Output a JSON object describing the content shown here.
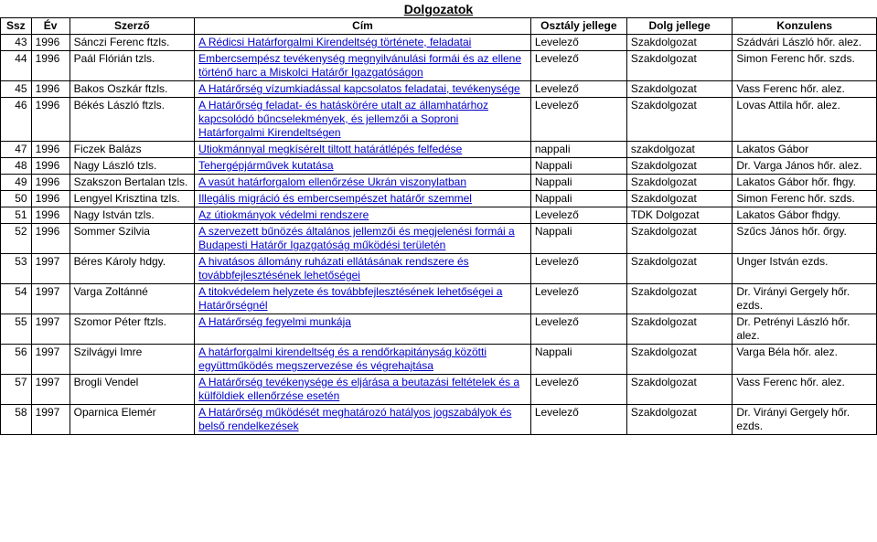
{
  "title": "Dolgozatok",
  "columns": [
    "Ssz",
    "Év",
    "Szerző",
    "Cím",
    "Osztály jellege",
    "Dolg jellege",
    "Konzulens"
  ],
  "rows": [
    {
      "ssz": "43",
      "ev": "1996",
      "szerzo": "Sánczi Ferenc ftzls.",
      "cim": "A Rédicsi Határforgalmi Kirendeltség története, feladatai",
      "osztaly": "Levelező",
      "dolg": "Szakdolgozat",
      "konzulens": "Szádvári László hőr. alez."
    },
    {
      "ssz": "44",
      "ev": "1996",
      "szerzo": "Paál Flórián tzls.",
      "cim": "Embercsempész tevékenység megnyilvánulási formái és az ellene történő harc a Miskolci Határőr Igazgatóságon",
      "osztaly": "Levelező",
      "dolg": "Szakdolgozat",
      "konzulens": "Simon Ferenc hőr. szds."
    },
    {
      "ssz": "45",
      "ev": "1996",
      "szerzo": "Bakos Oszkár ftzls.",
      "cim": "A Határőrség vízumkiadással kapcsolatos feladatai, tevékenysége",
      "osztaly": "Levelező",
      "dolg": "Szakdolgozat",
      "konzulens": "Vass Ferenc hőr. alez."
    },
    {
      "ssz": "46",
      "ev": "1996",
      "szerzo": "Békés László ftzls.",
      "cim": "A Határőrség feladat- és hatáskörére utalt az államhatárhoz kapcsolódó bűncselekmények, és jellemzői a Soproni Határforgalmi Kirendeltségen",
      "osztaly": "Levelező",
      "dolg": "Szakdolgozat",
      "konzulens": "Lovas Attila hőr. alez."
    },
    {
      "ssz": "47",
      "ev": "1996",
      "szerzo": "Ficzek Balázs",
      "cim": "Utiokmánnyal megkísérelt tiltott határátlépés felfedése",
      "osztaly": "nappali",
      "dolg": "szakdolgozat",
      "konzulens": "Lakatos Gábor"
    },
    {
      "ssz": "48",
      "ev": "1996",
      "szerzo": "Nagy László tzls.",
      "cim": "Tehergépjárművek kutatása",
      "osztaly": "Nappali",
      "dolg": "Szakdolgozat",
      "konzulens": "Dr. Varga János hőr. alez."
    },
    {
      "ssz": "49",
      "ev": "1996",
      "szerzo": "Szakszon Bertalan tzls.",
      "cim": "A vasút határforgalom ellenőrzése Ukrán viszonylatban",
      "osztaly": "Nappali",
      "dolg": "Szakdolgozat",
      "konzulens": "Lakatos Gábor hőr. fhgy."
    },
    {
      "ssz": "50",
      "ev": "1996",
      "szerzo": "Lengyel Krisztina tzls.",
      "cim": "Illegális migráció és embercsempészet határőr szemmel",
      "osztaly": "Nappali",
      "dolg": "Szakdolgozat",
      "konzulens": "Simon Ferenc hőr. szds."
    },
    {
      "ssz": "51",
      "ev": "1996",
      "szerzo": "Nagy István tzls.",
      "cim": "Az útiokmányok védelmi rendszere",
      "osztaly": "Levelező",
      "dolg": "TDK Dolgozat",
      "konzulens": "Lakatos Gábor fhdgy."
    },
    {
      "ssz": "52",
      "ev": "1996",
      "szerzo": "Sommer Szilvia",
      "cim": "A szervezett bűnözés általános jellemzői és megjelenési formái a Budapesti Határőr Igazgatóság működési területén",
      "osztaly": "Nappali",
      "dolg": "Szakdolgozat",
      "konzulens": "Szűcs János hőr. őrgy."
    },
    {
      "ssz": "53",
      "ev": "1997",
      "szerzo": "Béres Károly hdgy.",
      "cim": "A hivatásos állomány ruházati ellátásának rendszere és továbbfejlesztésének lehetőségei",
      "osztaly": "Levelező",
      "dolg": "Szakdolgozat",
      "konzulens": "Unger István ezds."
    },
    {
      "ssz": "54",
      "ev": "1997",
      "szerzo": "Varga Zoltánné",
      "cim": "A titokvédelem helyzete és továbbfejlesztésének lehetőségei a Határőrségnél",
      "osztaly": "Levelező",
      "dolg": "Szakdolgozat",
      "konzulens": "Dr. Virányi Gergely hőr. ezds."
    },
    {
      "ssz": "55",
      "ev": "1997",
      "szerzo": "Szomor Péter ftzls.",
      "cim": "A Határőrség fegyelmi munkája",
      "osztaly": "Levelező",
      "dolg": "Szakdolgozat",
      "konzulens": "Dr. Petrényi László hőr. alez."
    },
    {
      "ssz": "56",
      "ev": "1997",
      "szerzo": "Szilvágyi Imre",
      "cim": "A határforgalmi kirendeltség és a rendőrkapitányság közötti együttműködés megszervezése és végrehajtása",
      "osztaly": "Nappali",
      "dolg": "Szakdolgozat",
      "konzulens": "Varga Béla hőr. alez."
    },
    {
      "ssz": "57",
      "ev": "1997",
      "szerzo": "Brogli Vendel",
      "cim": "A Határőrség tevékenysége és eljárása a beutazási feltételek és a külföldiek ellenőrzése esetén",
      "osztaly": "Levelező",
      "dolg": "Szakdolgozat",
      "konzulens": "Vass Ferenc hőr. alez."
    },
    {
      "ssz": "58",
      "ev": "1997",
      "szerzo": "Oparnica Elemér",
      "cim": "A Határőrség működését meghatározó hatályos jogszabályok és belső rendelkezések",
      "osztaly": "Levelező",
      "dolg": "Szakdolgozat",
      "konzulens": "Dr. Virányi Gergely hőr. ezds."
    }
  ]
}
